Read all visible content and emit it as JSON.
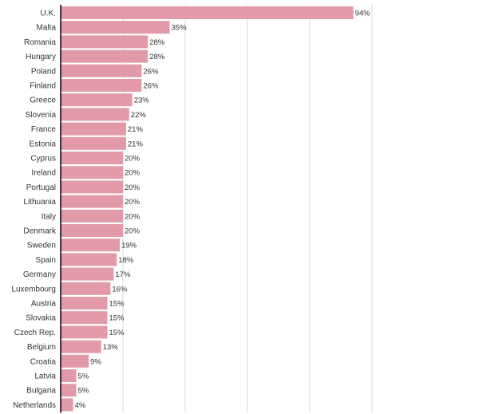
{
  "chart_data": {
    "type": "bar",
    "orientation": "horizontal",
    "categories": [
      "U.K.",
      "Malta",
      "Romania",
      "Hungary",
      "Poland",
      "Finland",
      "Greece",
      "Slovenia",
      "France",
      "Estonia",
      "Cyprus",
      "Ireland",
      "Portugal",
      "Lithuania",
      "Italy",
      "Denmark",
      "Sweden",
      "Spain",
      "Germany",
      "Luxembourg",
      "Austria",
      "Slovakia",
      "Czech Rep.",
      "Belgium",
      "Croatia",
      "Latvia",
      "Bulgaria",
      "Netherlands"
    ],
    "values": [
      94,
      35,
      28,
      28,
      26,
      26,
      23,
      22,
      21,
      21,
      20,
      20,
      20,
      20,
      20,
      20,
      19,
      18,
      17,
      16,
      15,
      15,
      15,
      13,
      9,
      5,
      5,
      4
    ],
    "value_labels": [
      "94%",
      "35%",
      "28%",
      "28%",
      "26%",
      "26%",
      "23%",
      "22%",
      "21%",
      "21%",
      "20%",
      "20%",
      "20%",
      "20%",
      "20%",
      "20%",
      "19%",
      "18%",
      "17%",
      "16%",
      "15%",
      "15%",
      "15%",
      "13%",
      "9%",
      "5%",
      "5%",
      "4%"
    ],
    "xlim": [
      0,
      100
    ],
    "grid": true,
    "bar_color": "#e29aa9"
  }
}
